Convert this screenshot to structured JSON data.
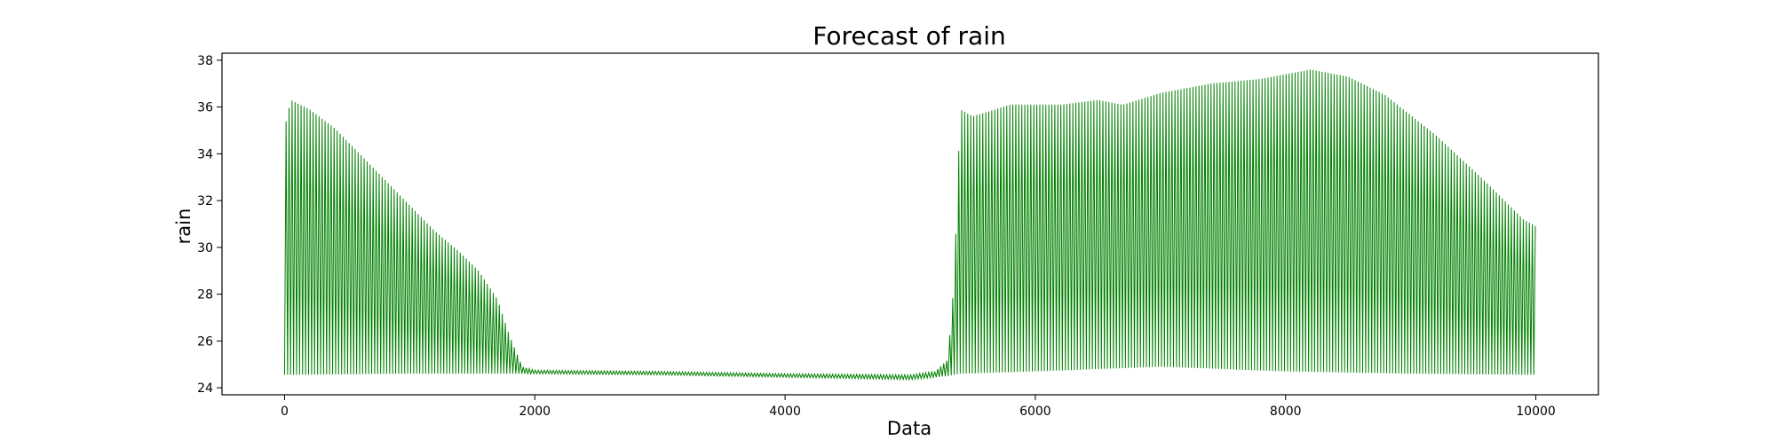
{
  "chart_data": {
    "type": "line",
    "title": "Forecast of rain",
    "xlabel": "Data",
    "ylabel": "rain",
    "xlim": [
      -500,
      10500
    ],
    "ylim": [
      23.7,
      38.3
    ],
    "x_ticks": [
      0,
      2000,
      4000,
      6000,
      8000,
      10000
    ],
    "y_ticks": [
      24,
      26,
      28,
      30,
      32,
      34,
      36,
      38
    ],
    "grid": false,
    "legend": "none",
    "line_color": "#008000",
    "note": "Oscillating signal; envelope of peaks and troughs read from the plot (approximately 24 samples per cycle).",
    "upper_envelope": [
      {
        "x": 0,
        "y": 35.1
      },
      {
        "x": 50,
        "y": 36.3
      },
      {
        "x": 200,
        "y": 35.9
      },
      {
        "x": 400,
        "y": 35.1
      },
      {
        "x": 600,
        "y": 34.0
      },
      {
        "x": 800,
        "y": 32.9
      },
      {
        "x": 1000,
        "y": 31.8
      },
      {
        "x": 1200,
        "y": 30.7
      },
      {
        "x": 1400,
        "y": 29.8
      },
      {
        "x": 1550,
        "y": 29.0
      },
      {
        "x": 1700,
        "y": 27.8
      },
      {
        "x": 1800,
        "y": 26.2
      },
      {
        "x": 1900,
        "y": 24.9
      },
      {
        "x": 2000,
        "y": 24.75
      },
      {
        "x": 3000,
        "y": 24.7
      },
      {
        "x": 4000,
        "y": 24.6
      },
      {
        "x": 5000,
        "y": 24.55
      },
      {
        "x": 5200,
        "y": 24.7
      },
      {
        "x": 5300,
        "y": 25.2
      },
      {
        "x": 5350,
        "y": 28.5
      },
      {
        "x": 5400,
        "y": 35.9
      },
      {
        "x": 5500,
        "y": 35.6
      },
      {
        "x": 5800,
        "y": 36.1
      },
      {
        "x": 6200,
        "y": 36.1
      },
      {
        "x": 6500,
        "y": 36.3
      },
      {
        "x": 6700,
        "y": 36.1
      },
      {
        "x": 7000,
        "y": 36.6
      },
      {
        "x": 7400,
        "y": 37.0
      },
      {
        "x": 7800,
        "y": 37.2
      },
      {
        "x": 8200,
        "y": 37.6
      },
      {
        "x": 8500,
        "y": 37.3
      },
      {
        "x": 8800,
        "y": 36.5
      },
      {
        "x": 9200,
        "y": 34.8
      },
      {
        "x": 9600,
        "y": 32.8
      },
      {
        "x": 9900,
        "y": 31.2
      },
      {
        "x": 10000,
        "y": 30.9
      }
    ],
    "lower_envelope": [
      {
        "x": 0,
        "y": 24.55
      },
      {
        "x": 1000,
        "y": 24.6
      },
      {
        "x": 2000,
        "y": 24.6
      },
      {
        "x": 3000,
        "y": 24.55
      },
      {
        "x": 4000,
        "y": 24.45
      },
      {
        "x": 5000,
        "y": 24.35
      },
      {
        "x": 5300,
        "y": 24.5
      },
      {
        "x": 5400,
        "y": 24.6
      },
      {
        "x": 6000,
        "y": 24.7
      },
      {
        "x": 6500,
        "y": 24.8
      },
      {
        "x": 7000,
        "y": 24.9
      },
      {
        "x": 7500,
        "y": 24.8
      },
      {
        "x": 8000,
        "y": 24.7
      },
      {
        "x": 9000,
        "y": 24.6
      },
      {
        "x": 10000,
        "y": 24.55
      }
    ]
  }
}
